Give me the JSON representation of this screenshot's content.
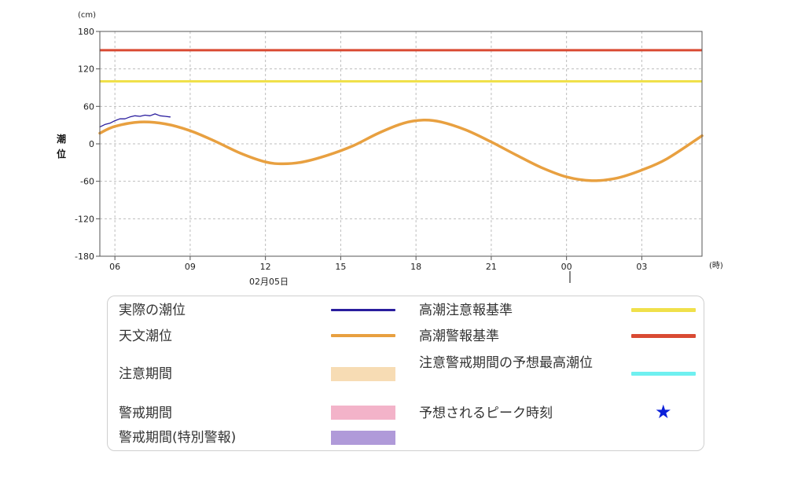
{
  "chart_data": {
    "type": "line",
    "title": "",
    "ylabel": "潮位",
    "yunit": "(cm)",
    "xunit": "(時)",
    "date_label": "02月05日",
    "ylim": [
      -180,
      180
    ],
    "yticks": [
      180,
      120,
      60,
      0,
      -60,
      -120,
      -180
    ],
    "x_ticks": [
      {
        "label": "06",
        "hour": 6
      },
      {
        "label": "09",
        "hour": 9
      },
      {
        "label": "12",
        "hour": 12
      },
      {
        "label": "15",
        "hour": 15
      },
      {
        "label": "18",
        "hour": 18
      },
      {
        "label": "21",
        "hour": 21
      },
      {
        "label": "00",
        "hour": 24
      },
      {
        "label": "03",
        "hour": 27
      }
    ],
    "xlim_hours": [
      5.4,
      29.4
    ],
    "grid": true,
    "thresholds": [
      {
        "name": "高潮警報基準",
        "value": 150,
        "color": "#d94a33"
      },
      {
        "name": "高潮注意報基準",
        "value": 100,
        "color": "#f0e04a"
      }
    ],
    "series": [
      {
        "name": "天文潮位",
        "color": "#e8a040",
        "x_hours": [
          5.4,
          6.0,
          7.0,
          8.0,
          9.0,
          10.0,
          11.0,
          12.0,
          12.7,
          13.5,
          14.5,
          15.5,
          16.5,
          17.5,
          18.3,
          19.0,
          20.0,
          21.0,
          22.0,
          23.0,
          24.0,
          25.0,
          26.0,
          27.0,
          28.0,
          29.4
        ],
        "values": [
          17,
          28,
          35,
          32,
          21,
          4,
          -15,
          -29,
          -32,
          -29,
          -18,
          -3,
          17,
          33,
          38,
          35,
          22,
          3,
          -18,
          -38,
          -53,
          -59,
          -55,
          -42,
          -24,
          13
        ]
      },
      {
        "name": "実際の潮位",
        "color": "#2a1d9e",
        "x_hours": [
          5.4,
          5.6,
          5.8,
          6.0,
          6.2,
          6.4,
          6.6,
          6.8,
          7.0,
          7.2,
          7.4,
          7.6,
          7.8,
          8.0,
          8.2
        ],
        "values": [
          27,
          31,
          33,
          37,
          40,
          40,
          43,
          45,
          44,
          46,
          45,
          48,
          45,
          44,
          43
        ]
      }
    ]
  },
  "legend": {
    "actual": "実際の潮位",
    "astronomical": "天文潮位",
    "caution_period": "注意期間",
    "warning_period": "警戒期間",
    "special_warning_period": "警戒期間(特別警報)",
    "advisory_standard": "高潮注意報基準",
    "warning_standard": "高潮警報基準",
    "peak_forecast": "注意警戒期間の予想最高潮位",
    "peak_time": "予想されるピーク時刻",
    "colors": {
      "actual": "#2a1d9e",
      "astronomical": "#e8a040",
      "caution_period": "#f7dcb4",
      "warning_period": "#f3b3c9",
      "special_warning_period": "#b09ad9",
      "advisory_standard": "#f0e04a",
      "warning_standard": "#d94a33",
      "peak_forecast": "#6ff0f0",
      "star": "#0a1fd9"
    },
    "star_icon": "star-icon"
  }
}
